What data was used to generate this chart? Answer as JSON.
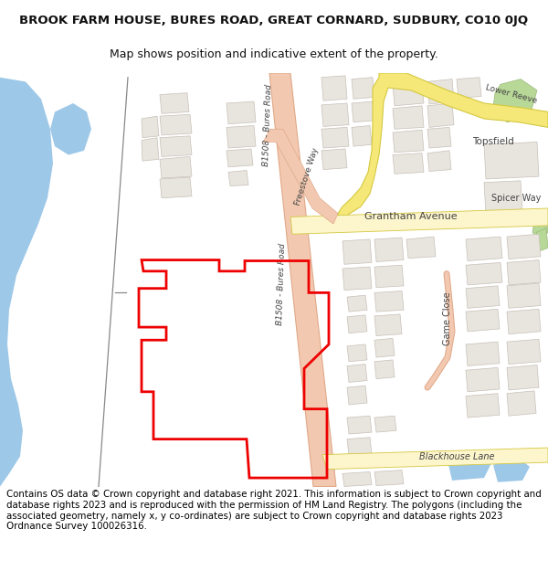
{
  "title_line1": "BROOK FARM HOUSE, BURES ROAD, GREAT CORNARD, SUDBURY, CO10 0JQ",
  "title_line2": "Map shows position and indicative extent of the property.",
  "footer_text": "Contains OS data © Crown copyright and database right 2021. This information is subject to Crown copyright and database rights 2023 and is reproduced with the permission of HM Land Registry. The polygons (including the associated geometry, namely x, y co-ordinates) are subject to Crown copyright and database rights 2023 Ordnance Survey 100026316.",
  "bg_color": "#f5f3ee",
  "road_peach": "#f2c9b0",
  "road_peach_edge": "#e0a888",
  "road_yellow": "#f5e878",
  "road_yellow_edge": "#d4c840",
  "road_yellow_light": "#fdf5cc",
  "water_blue": "#9ec8e8",
  "building_fill": "#e8e4de",
  "building_edge": "#c8c0b8",
  "green_fill": "#b8d898",
  "green_edge": "#98b878",
  "path_color": "#888888",
  "text_color": "#444444",
  "red_color": "#ee0000",
  "white": "#ffffff"
}
